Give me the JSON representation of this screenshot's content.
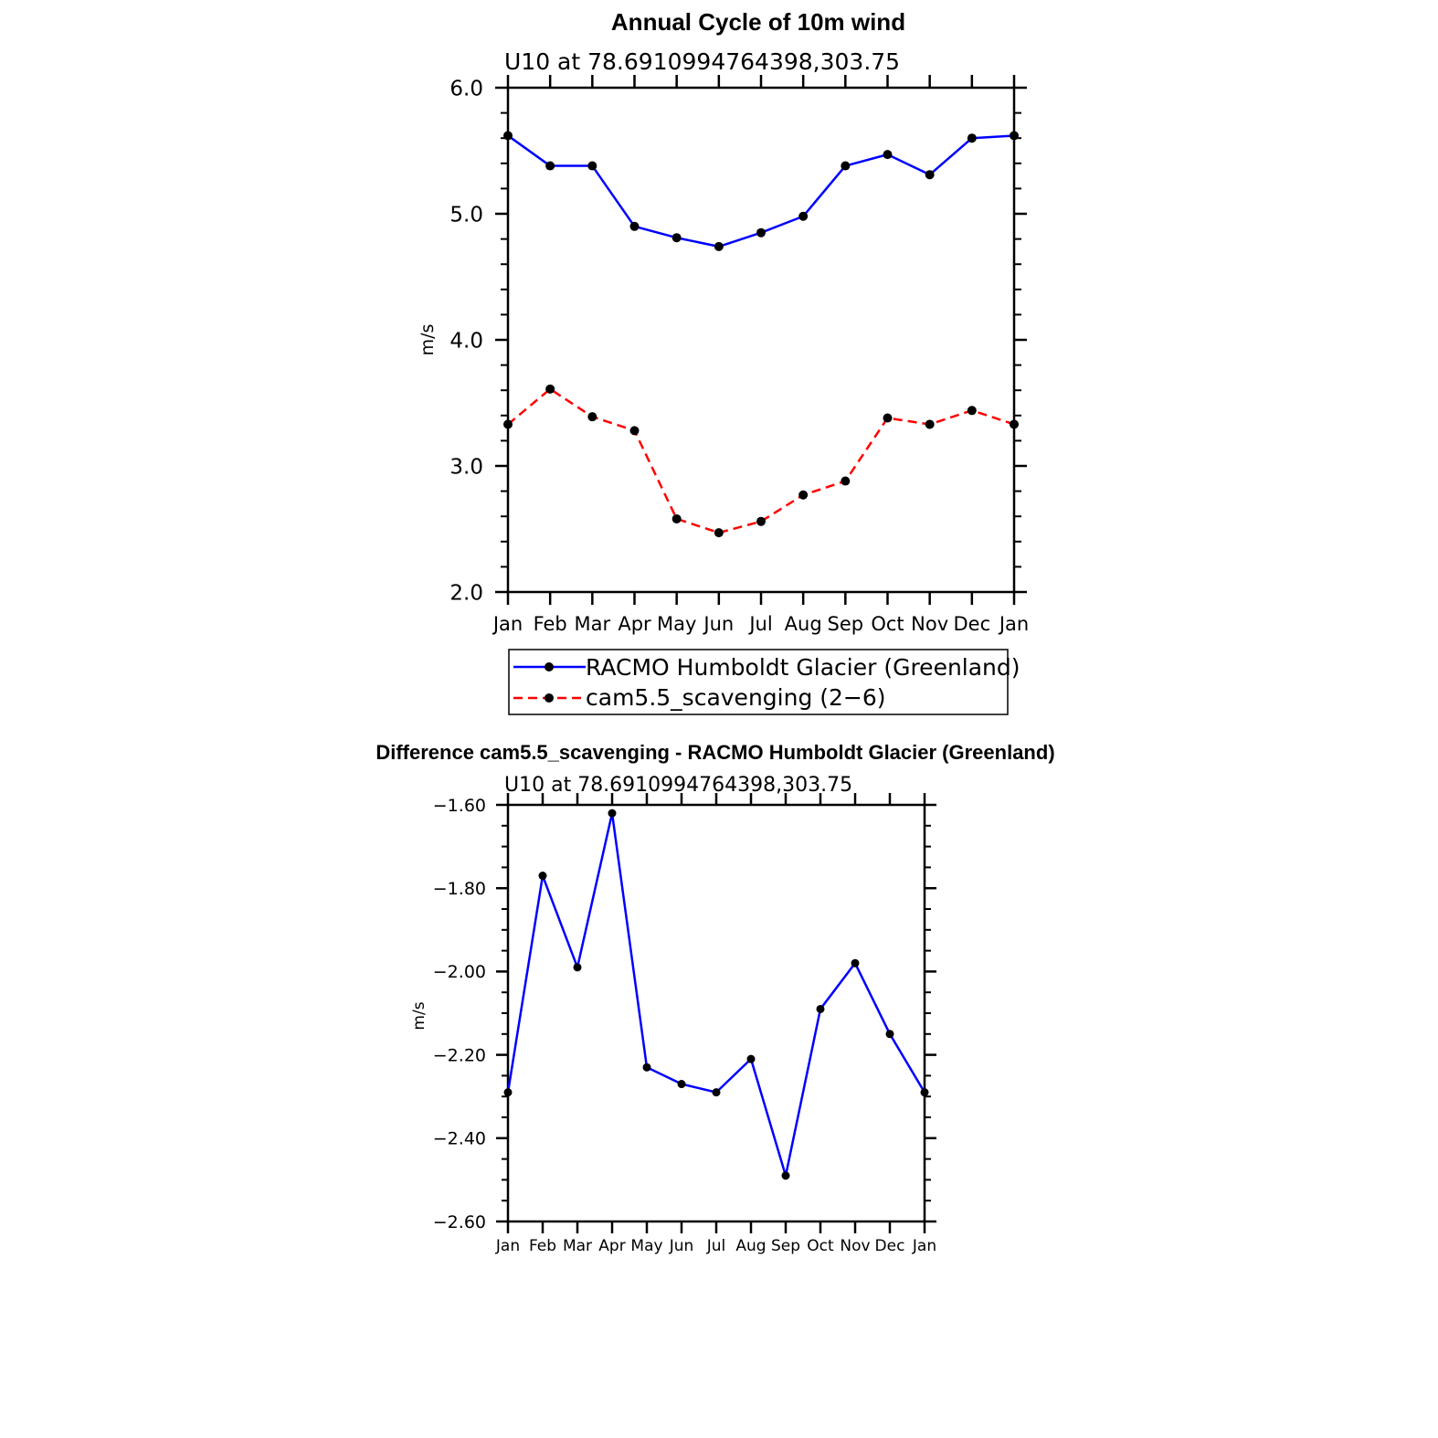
{
  "chart_data": [
    {
      "type": "line",
      "title": "Annual Cycle of 10m wind",
      "subtitle": "U10 at 78.6910994764398,303.75",
      "xlabel": "",
      "ylabel": "m/s",
      "categories": [
        "Jan",
        "Feb",
        "Mar",
        "Apr",
        "May",
        "Jun",
        "Jul",
        "Aug",
        "Sep",
        "Oct",
        "Nov",
        "Dec",
        "Jan"
      ],
      "ylim": [
        2.0,
        6.0
      ],
      "yticks": [
        "2.0",
        "3.0",
        "4.0",
        "5.0",
        "6.0"
      ],
      "grid": false,
      "legend_position": "below",
      "series": [
        {
          "name": "RACMO Humboldt Glacier (Greenland)",
          "color": "#0000ff",
          "style": "solid",
          "values": [
            5.62,
            5.38,
            5.38,
            4.9,
            4.81,
            4.74,
            4.85,
            4.98,
            5.38,
            5.47,
            5.31,
            5.6,
            5.62
          ]
        },
        {
          "name": "cam5.5_scavenging (2−6)",
          "color": "#ff0000",
          "style": "dashed",
          "values": [
            3.33,
            3.61,
            3.39,
            3.28,
            2.58,
            2.47,
            2.56,
            2.77,
            2.88,
            3.38,
            3.33,
            3.44,
            3.33
          ]
        }
      ]
    },
    {
      "type": "line",
      "title": "Difference cam5.5_scavenging - RACMO Humboldt Glacier (Greenland)",
      "subtitle": "U10 at 78.6910994764398,303.75",
      "xlabel": "",
      "ylabel": "m/s",
      "categories": [
        "Jan",
        "Feb",
        "Mar",
        "Apr",
        "May",
        "Jun",
        "Jul",
        "Aug",
        "Sep",
        "Oct",
        "Nov",
        "Dec",
        "Jan"
      ],
      "ylim": [
        -2.6,
        -1.6
      ],
      "yticks": [
        "−2.60",
        "−2.40",
        "−2.20",
        "−2.00",
        "−1.80",
        "−1.60"
      ],
      "grid": false,
      "series": [
        {
          "name": "Difference",
          "color": "#0000ff",
          "style": "solid",
          "values": [
            -2.29,
            -1.77,
            -1.99,
            -1.62,
            -2.23,
            -2.27,
            -2.29,
            -2.21,
            -2.49,
            -2.09,
            -1.98,
            -2.15,
            -2.29
          ]
        }
      ]
    }
  ]
}
